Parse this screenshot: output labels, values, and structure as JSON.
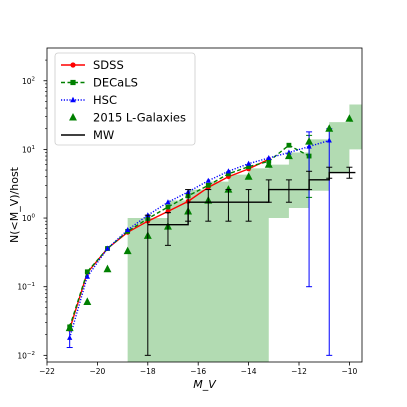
{
  "chart_data": {
    "type": "line",
    "xlabel": "M_V",
    "ylabel": "N(<M_V)/host",
    "xlim": [
      -22,
      -9.5
    ],
    "ylim": [
      0.008,
      300
    ],
    "yscale": "log",
    "x_ticks": [
      -22,
      -20,
      -18,
      -16,
      -14,
      -12,
      -10
    ],
    "x_tick_labels": [
      "−22",
      "−20",
      "−18",
      "−16",
      "−14",
      "−12",
      "−10"
    ],
    "y_ticks": [
      0.01,
      0.1,
      1,
      10,
      100
    ],
    "y_tick_base": "10",
    "y_tick_exponents": [
      "−2",
      "−1",
      "0",
      "1",
      "2"
    ],
    "grid": false,
    "legend_position": "upper left",
    "series": [
      {
        "name": "SDSS",
        "color": "#ff0000",
        "marker": "circle",
        "linestyle": "solid",
        "x": [
          -21.1,
          -20.4,
          -19.6,
          -18.8,
          -18.0,
          -17.2,
          -16.4,
          -15.6,
          -14.8,
          -14.0,
          -13.2
        ],
        "y": [
          0.024,
          0.16,
          0.36,
          0.62,
          0.9,
          1.25,
          1.75,
          2.8,
          4.0,
          5.2,
          7.2
        ]
      },
      {
        "name": "DECaLS",
        "color": "#008000",
        "marker": "square",
        "linestyle": "dashed",
        "x": [
          -21.1,
          -20.4,
          -19.6,
          -18.8,
          -18.0,
          -17.2,
          -16.4,
          -15.6,
          -14.8,
          -14.0,
          -13.2,
          -12.4,
          -11.6
        ],
        "y": [
          0.026,
          0.165,
          0.36,
          0.64,
          0.98,
          1.45,
          2.1,
          3.0,
          4.4,
          5.6,
          6.7,
          11.5,
          8.0
        ],
        "yerr_low": [
          0,
          0,
          0,
          0,
          0,
          0,
          0,
          0,
          0,
          0,
          0,
          0,
          6.0
        ],
        "yerr_high": [
          0,
          0,
          0,
          0,
          0,
          0,
          0,
          0,
          0,
          0,
          0,
          0,
          8.0
        ]
      },
      {
        "name": "HSC",
        "color": "#0000ff",
        "marker": "triangle",
        "linestyle": "dotted",
        "x": [
          -21.1,
          -20.4,
          -19.6,
          -18.8,
          -18.0,
          -17.2,
          -16.4,
          -15.6,
          -14.8,
          -14.0,
          -13.2,
          -12.4,
          -11.6,
          -10.8
        ],
        "y": [
          0.018,
          0.14,
          0.36,
          0.67,
          1.1,
          1.7,
          2.4,
          3.5,
          4.8,
          6.2,
          7.5,
          9.0,
          11.0,
          13.5
        ],
        "yerr_low": [
          0.005,
          0,
          0,
          0,
          0,
          0,
          0,
          0,
          0,
          0,
          0,
          0,
          10.9,
          13.49
        ],
        "yerr_high": [
          0.005,
          0,
          0,
          0,
          0,
          0,
          0,
          0,
          0,
          0,
          0,
          0,
          7.0,
          6.5
        ]
      },
      {
        "name": "2015 L-Galaxies",
        "color": "#008000",
        "marker": "triangle",
        "linestyle": "none",
        "x": [
          -21.1,
          -20.4,
          -19.6,
          -18.8,
          -18.0,
          -17.2,
          -16.4,
          -15.6,
          -14.8,
          -14.0,
          -13.2,
          -12.4,
          -11.6,
          -10.8,
          -10.0
        ],
        "y": [
          0.025,
          0.06,
          0.18,
          0.33,
          0.55,
          0.75,
          1.25,
          1.8,
          2.6,
          4.0,
          6.0,
          8.0,
          13.0,
          20.0,
          28.0
        ]
      },
      {
        "name": "MW",
        "color": "#000000",
        "marker": "none",
        "linestyle": "steps",
        "x": [
          -18.0,
          -17.2,
          -16.4,
          -15.6,
          -14.8,
          -14.0,
          -13.2,
          -12.4,
          -11.6,
          -10.8,
          -10.0
        ],
        "y": [
          0.8,
          0.8,
          1.7,
          1.7,
          1.7,
          1.7,
          2.6,
          2.6,
          3.6,
          4.6,
          4.6
        ],
        "yerr_low": [
          0.79,
          0.4,
          0.8,
          0.8,
          0.8,
          0.8,
          0.9,
          0.9,
          1.0,
          0.8,
          0.8
        ],
        "yerr_high": [
          0.3,
          0.4,
          0.9,
          0.9,
          0.9,
          0.9,
          1.0,
          1.0,
          1.2,
          0.9,
          0.9
        ]
      }
    ],
    "band": {
      "color": "#55b055",
      "x": [
        -18.8,
        -17.2,
        -16.4,
        -15.6,
        -14.8,
        -14.0,
        -13.2,
        -12.4,
        -11.6,
        -10.8,
        -10.0
      ],
      "y_low": [
        0.008,
        0.008,
        0.008,
        0.008,
        0.008,
        0.008,
        1.0,
        1.4,
        2.5,
        4.5,
        10.0
      ],
      "y_high": [
        1.0,
        1.8,
        2.6,
        3.4,
        4.3,
        5.3,
        6.0,
        9.0,
        14.0,
        25.0,
        45.0
      ]
    }
  }
}
